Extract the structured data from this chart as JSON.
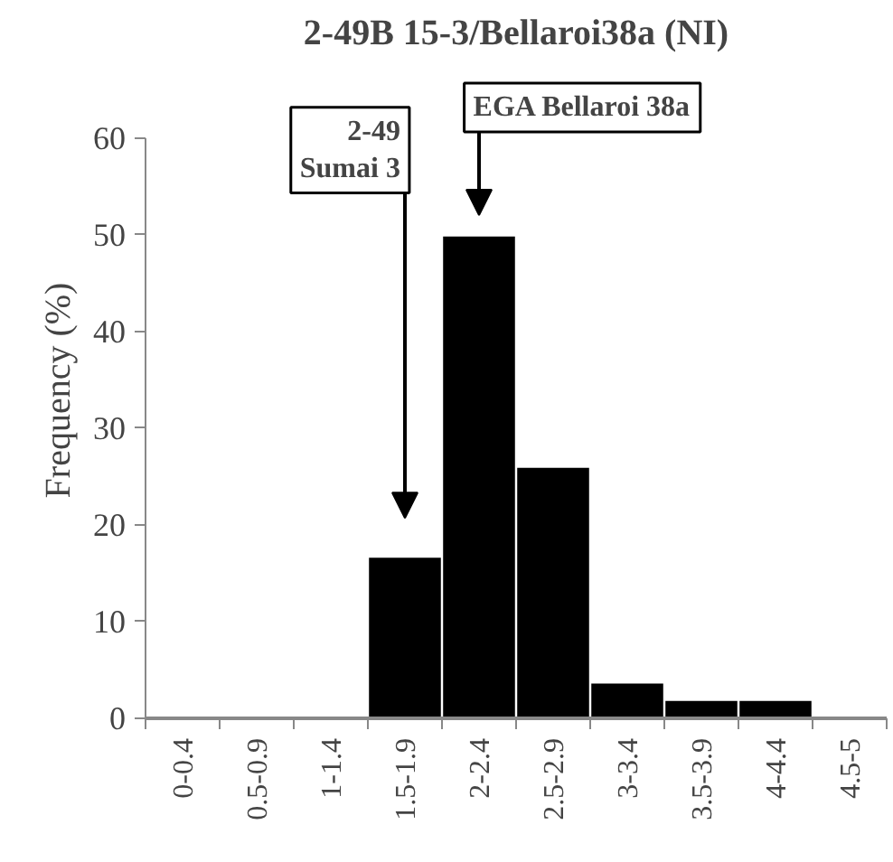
{
  "chart_data": {
    "type": "bar",
    "title": "2-49B 15-3/Bellaroi38a (NI)",
    "ylabel": "Frequency (%)",
    "categories": [
      "0-0.4",
      "0.5-0.9",
      "1-1.4",
      "1.5-1.9",
      "2-2.4",
      "2.5-2.9",
      "3-3.4",
      "3.5-3.9",
      "4-4.4",
      "4.5-5"
    ],
    "values": [
      0,
      0,
      0,
      16.6,
      49.8,
      25.9,
      3.6,
      1.8,
      1.8,
      0
    ],
    "color": "#000000",
    "ylim": [
      0,
      60
    ],
    "yticks": [
      0,
      10,
      20,
      30,
      40,
      50,
      60
    ],
    "grid": false,
    "annotations": [
      "2-49\nSumai 3",
      "EGA Bellaroi 38a"
    ]
  }
}
